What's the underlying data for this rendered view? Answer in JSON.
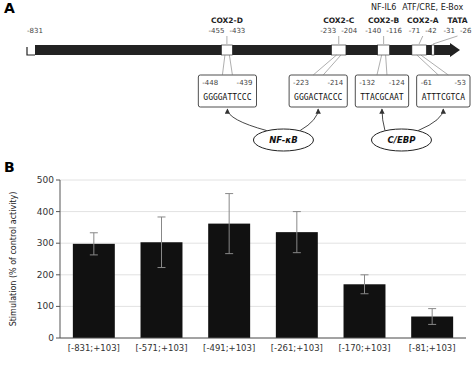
{
  "chart_data": [
    {
      "type": "gene_map",
      "title": "A",
      "xlim": [
        -831,
        26
      ],
      "boxes": [
        {
          "label": "COX2-D",
          "x1": -455,
          "x2": -433
        },
        {
          "label": "COX2-C",
          "x1": -233,
          "x2": -204
        },
        {
          "label": "COX2-B",
          "x1": -140,
          "x2": -116
        },
        {
          "label": "COX2-A",
          "x1": -71,
          "x2": -42
        },
        {
          "label": "TATA",
          "x1": -31,
          "x2": -26
        }
      ],
      "sites": [
        {
          "seq": "GGGGATTCCC",
          "start": -448,
          "end": -439,
          "center": -443
        },
        {
          "seq": "GGGACTACCC",
          "start": -223,
          "end": -214,
          "center": -218
        },
        {
          "seq": "TTACGCAAT",
          "start": -132,
          "end": -124,
          "center": -128
        },
        {
          "seq": "ATTTCGTCA",
          "start": -61,
          "end": -53,
          "center": -57
        }
      ],
      "factors": [
        {
          "name": "NF-κB",
          "center": -330,
          "sites": [
            0,
            1
          ]
        },
        {
          "name": "C/EBP",
          "center": -92,
          "sites": [
            2,
            3
          ]
        }
      ],
      "annotations": [
        {
          "text": "NF-IL6",
          "x": -128
        },
        {
          "text": "ATF/CRE, E-Box",
          "x": -57
        }
      ]
    },
    {
      "type": "bar",
      "title": "B",
      "categories": [
        "[-831;+103]",
        "[-571;+103]",
        "[-491;+103]",
        "[-261;+103]",
        "[-170;+103]",
        "[-81;+103]"
      ],
      "values": [
        298,
        303,
        362,
        335,
        170,
        68
      ],
      "errors": [
        35,
        80,
        95,
        65,
        30,
        25
      ],
      "color": "#111111",
      "ylabel": "Stimulation (% of control activity)",
      "ylim": [
        0,
        500
      ],
      "yticks": [
        0,
        100,
        200,
        300,
        400,
        500
      ],
      "grid": true
    }
  ]
}
